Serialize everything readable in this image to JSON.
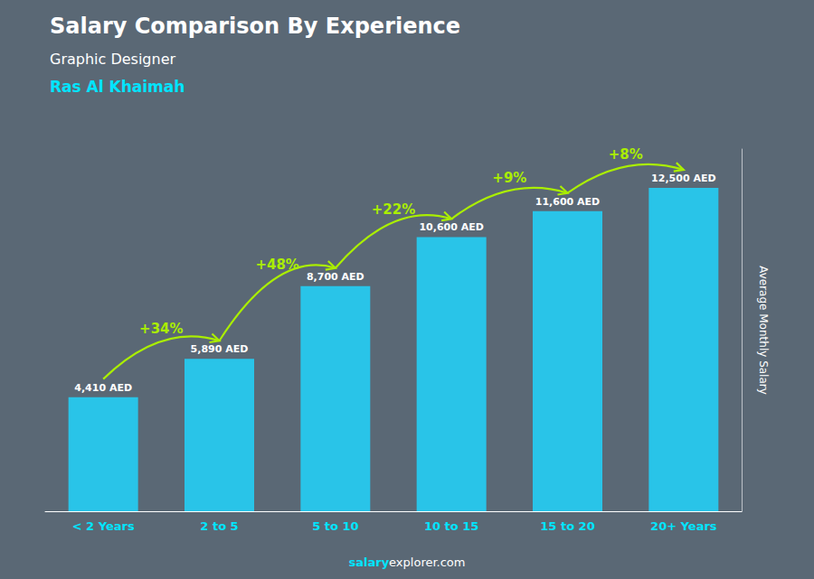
{
  "chart_data": {
    "type": "bar",
    "title": "Salary Comparison By Experience",
    "subtitle": [
      "Graphic Designer",
      "Ras Al Khaimah"
    ],
    "ylabel": "Average Monthly Salary",
    "footer": [
      "salary",
      "explorer.com"
    ],
    "categories": [
      "< 2 Years",
      "2 to 5",
      "5 to 10",
      "10 to 15",
      "15 to 20",
      "20+ Years"
    ],
    "values": [
      4410,
      5890,
      8700,
      10600,
      11600,
      12500
    ],
    "value_labels": [
      "4,410 AED",
      "5,890 AED",
      "8,700 AED",
      "10,600 AED",
      "11,600 AED",
      "12,500 AED"
    ],
    "data_labels": true,
    "annotations": [
      "+34%",
      "+48%",
      "+22%",
      "+9%",
      "+8%"
    ],
    "color": "#29C4E8",
    "ylim": [
      0,
      14000
    ],
    "grid": false,
    "tick_labels": "x"
  }
}
